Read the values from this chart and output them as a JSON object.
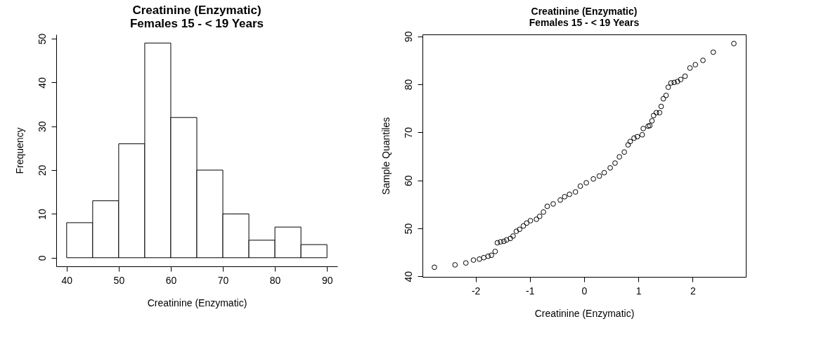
{
  "chart_data": [
    {
      "type": "histogram",
      "title": "Creatinine (Enzymatic)\nFemales 15 - < 19 Years",
      "xlabel": "Creatinine (Enzymatic)",
      "ylabel": "Frequency",
      "bins": [
        40,
        45,
        50,
        55,
        60,
        65,
        70,
        75,
        80,
        85,
        90
      ],
      "values": [
        8,
        13,
        26,
        49,
        32,
        20,
        10,
        4,
        7,
        3
      ],
      "color": "#ffffff",
      "xlim": [
        38,
        92
      ],
      "xticks": [
        40,
        50,
        60,
        70,
        80,
        90
      ],
      "ylim": [
        -1.96,
        50.96
      ],
      "yticks": [
        0,
        10,
        20,
        30,
        40,
        50
      ],
      "grid": false
    },
    {
      "type": "scatter",
      "title": "Creatinine (Enzymatic)\nFemales 15 - < 19 Years",
      "xlabel": "Creatinine (Enzymatic)",
      "ylabel": "Sample Quantiles",
      "marker": "circle",
      "color": "#000000",
      "x": [
        -2.76,
        -2.38,
        -2.18,
        -2.04,
        -1.93,
        -1.85,
        -1.77,
        -1.71,
        -1.64,
        -1.6,
        -1.54,
        -1.48,
        -1.43,
        -1.36,
        -1.31,
        -1.25,
        -1.19,
        -1.12,
        -1.06,
        -0.99,
        -0.88,
        -0.82,
        -0.75,
        -0.68,
        -0.57,
        -0.44,
        -0.36,
        -0.27,
        -0.16,
        -0.07,
        0.04,
        0.17,
        0.28,
        0.37,
        0.48,
        0.57,
        0.65,
        0.74,
        0.81,
        0.85,
        0.92,
        0.98,
        1.07,
        1.09,
        1.18,
        1.21,
        1.25,
        1.28,
        1.33,
        1.39,
        1.42,
        1.46,
        1.51,
        1.55,
        1.6,
        1.66,
        1.72,
        1.78,
        1.86,
        1.95,
        2.05,
        2.19,
        2.38,
        2.76
      ],
      "values": [
        41.9,
        42.4,
        42.8,
        43.4,
        43.6,
        43.9,
        44.2,
        44.4,
        45.2,
        47.0,
        47.2,
        47.3,
        47.6,
        47.9,
        48.4,
        49.4,
        49.8,
        50.5,
        51.1,
        51.6,
        51.9,
        52.5,
        53.4,
        54.6,
        55.1,
        55.9,
        56.6,
        57.1,
        57.6,
        58.8,
        59.5,
        60.3,
        60.9,
        61.6,
        62.6,
        63.6,
        64.9,
        65.9,
        67.4,
        68.1,
        68.8,
        69.1,
        69.5,
        70.8,
        71.3,
        71.4,
        72.4,
        73.5,
        74.1,
        74.1,
        75.4,
        77.0,
        77.7,
        79.4,
        80.3,
        80.4,
        80.6,
        81.0,
        81.7,
        83.4,
        84.1,
        85.0,
        86.7,
        88.5
      ],
      "xlim": [
        -2.98,
        2.98
      ],
      "xticks": [
        -2,
        -1,
        0,
        1,
        2
      ],
      "ylim": [
        39.9,
        90.4
      ],
      "yticks": [
        40,
        50,
        60,
        70,
        80,
        90
      ],
      "grid": false
    }
  ]
}
